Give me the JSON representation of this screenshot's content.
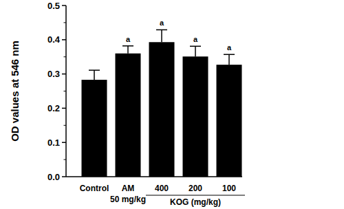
{
  "chart_data": {
    "type": "bar",
    "y_label": "OD values at 546 nm",
    "categories": [
      "Control",
      "AM",
      "400",
      "200",
      "100"
    ],
    "values": [
      0.283,
      0.36,
      0.393,
      0.351,
      0.327
    ],
    "errors": [
      0.028,
      0.022,
      0.036,
      0.03,
      0.03
    ],
    "significance": [
      null,
      "a",
      "a",
      "a",
      "a"
    ],
    "annotations": [
      {
        "text": "50 mg/kg",
        "under": [
          "AM"
        ]
      },
      {
        "text": "KOG (mg/kg)",
        "under": [
          "400",
          "200",
          "100"
        ]
      }
    ],
    "color": "#000000",
    "ylim": [
      0,
      0.5
    ],
    "yticks": [
      {
        "value": 0,
        "label": "0.0"
      },
      0.1,
      0.2,
      0.3,
      0.4,
      0.5
    ],
    "grid": false
  }
}
